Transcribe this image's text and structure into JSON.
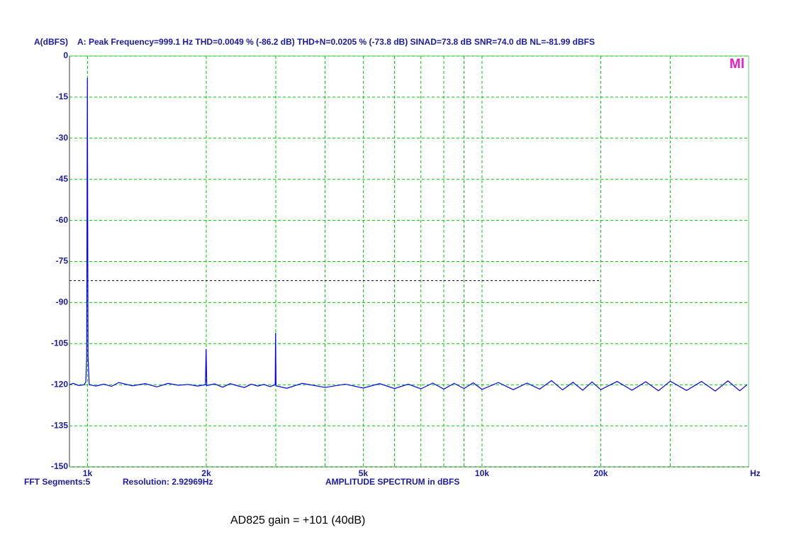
{
  "chart_data": {
    "type": "line",
    "title": "A: Peak Frequency=999.1 Hz  THD=0.0049 % (-86.2 dB)  THD+N=0.0205 % (-73.8 dB)  SINAD=73.8 dB  SNR=74.0 dB  NL=-81.99 dBFS",
    "y_label": "A(dBFS)",
    "x_label": "Hz",
    "footer_left": "FFT Segments:5",
    "footer_resolution": "Resolution: 2.92969Hz",
    "footer_center": "AMPLITUDE SPECTRUM in dBFS",
    "caption": "AD825 gain = +101 (40dB)",
    "watermark": "Ml",
    "log_x": true,
    "grid": true,
    "color": "#0000ff",
    "xlim": [
      900,
      47400
    ],
    "ylim": [
      -150,
      0
    ],
    "xticks": [
      {
        "value": 1000,
        "label": "1k"
      },
      {
        "value": 2000,
        "label": "2k"
      },
      {
        "value": 5000,
        "label": "5k"
      },
      {
        "value": 10000,
        "label": "10k"
      },
      {
        "value": 20000,
        "label": "20k"
      }
    ],
    "xminor": [
      3000,
      4000,
      6000,
      7000,
      8000,
      9000,
      30000
    ],
    "yticks": [
      0,
      -15,
      -30,
      -45,
      -60,
      -75,
      -90,
      -105,
      -120,
      -135,
      -150
    ],
    "nl_line": {
      "y": -81.99,
      "x_end": 20000
    },
    "x": [
      900,
      920,
      950,
      980,
      990,
      995,
      999.1,
      1003,
      1010,
      1050,
      1100,
      1150,
      1200,
      1300,
      1400,
      1500,
      1600,
      1700,
      1800,
      1900,
      1990,
      1998,
      2006,
      2100,
      2200,
      2300,
      2400,
      2500,
      2600,
      2700,
      2800,
      2900,
      2990,
      2997,
      3005,
      3200,
      3500,
      4000,
      4500,
      5000,
      5500,
      6000,
      6500,
      7000,
      7500,
      8000,
      8500,
      9000,
      9500,
      10000,
      11000,
      12000,
      13000,
      14000,
      15000,
      16000,
      17000,
      18000,
      19000,
      20000,
      22000,
      24000,
      26000,
      28000,
      30000,
      33000,
      36000,
      39000,
      42000,
      45000,
      47000
    ],
    "values": [
      -120,
      -119.5,
      -120.3,
      -120,
      -119,
      -110,
      -8,
      -110,
      -120,
      -120.5,
      -119.8,
      -120.6,
      -119.2,
      -120.4,
      -119.6,
      -120.8,
      -119.5,
      -120.2,
      -119.9,
      -120.5,
      -120,
      -107,
      -120.3,
      -119.7,
      -120.9,
      -119.6,
      -120.4,
      -121,
      -119.8,
      -120.5,
      -119.9,
      -120.7,
      -120,
      -101,
      -120.4,
      -121.3,
      -119.5,
      -121,
      -119.8,
      -121.2,
      -119.6,
      -121.4,
      -119.8,
      -121.5,
      -119.4,
      -121.6,
      -119.5,
      -121.4,
      -119.3,
      -121.7,
      -119.2,
      -121.8,
      -119.4,
      -121.6,
      -118.5,
      -121.9,
      -119.1,
      -122,
      -119,
      -121.8,
      -118.8,
      -122,
      -118.9,
      -122.2,
      -118.7,
      -122.1,
      -118.8,
      -122.3,
      -118.6,
      -122.2,
      -120
    ]
  }
}
